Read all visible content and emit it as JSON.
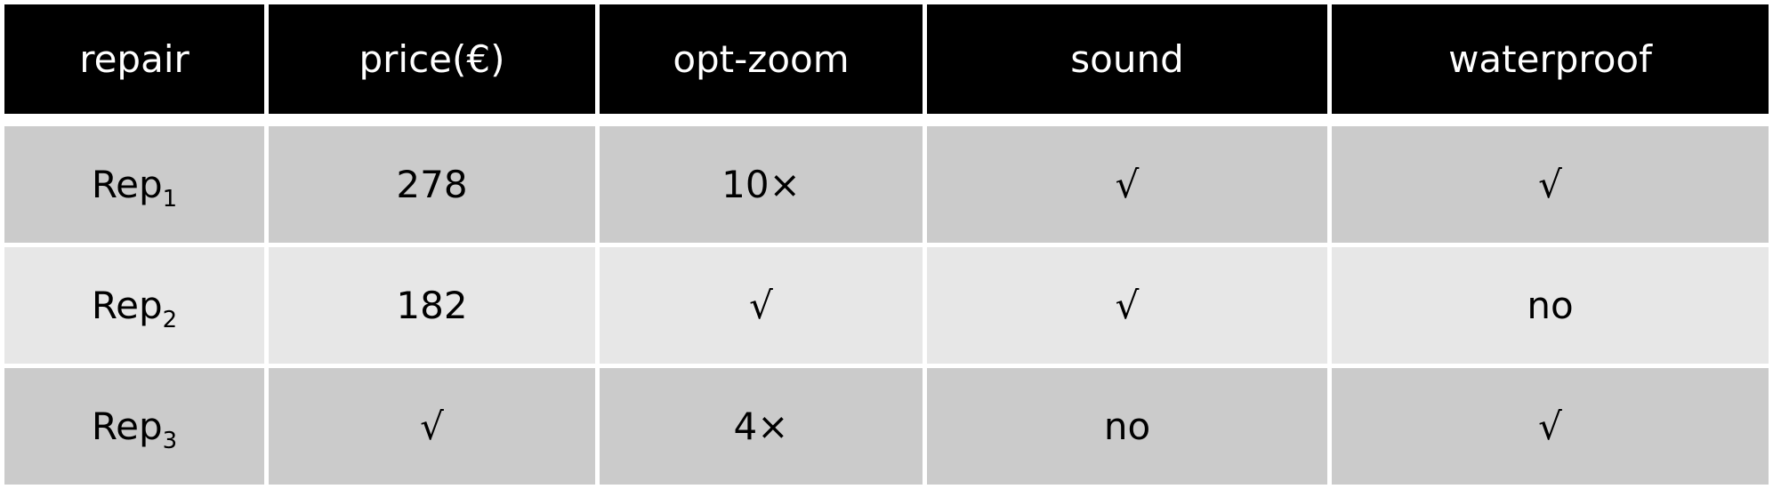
{
  "table": {
    "headers": [
      "repair",
      "price(€)",
      "opt-zoom",
      "sound",
      "waterproof"
    ],
    "rows": [
      {
        "name": "Rep",
        "subscript": "1",
        "cells": [
          "278",
          "10×",
          "√",
          "√"
        ]
      },
      {
        "name": "Rep",
        "subscript": "2",
        "cells": [
          "182",
          "√",
          "√",
          "no"
        ]
      },
      {
        "name": "Rep",
        "subscript": "3",
        "cells": [
          "√",
          "4×",
          "no",
          "√"
        ]
      }
    ]
  },
  "colors": {
    "header_bg": "#000000",
    "header_text": "#ffffff",
    "row_dark": "#cbcbcb",
    "row_light": "#e7e7e7"
  }
}
